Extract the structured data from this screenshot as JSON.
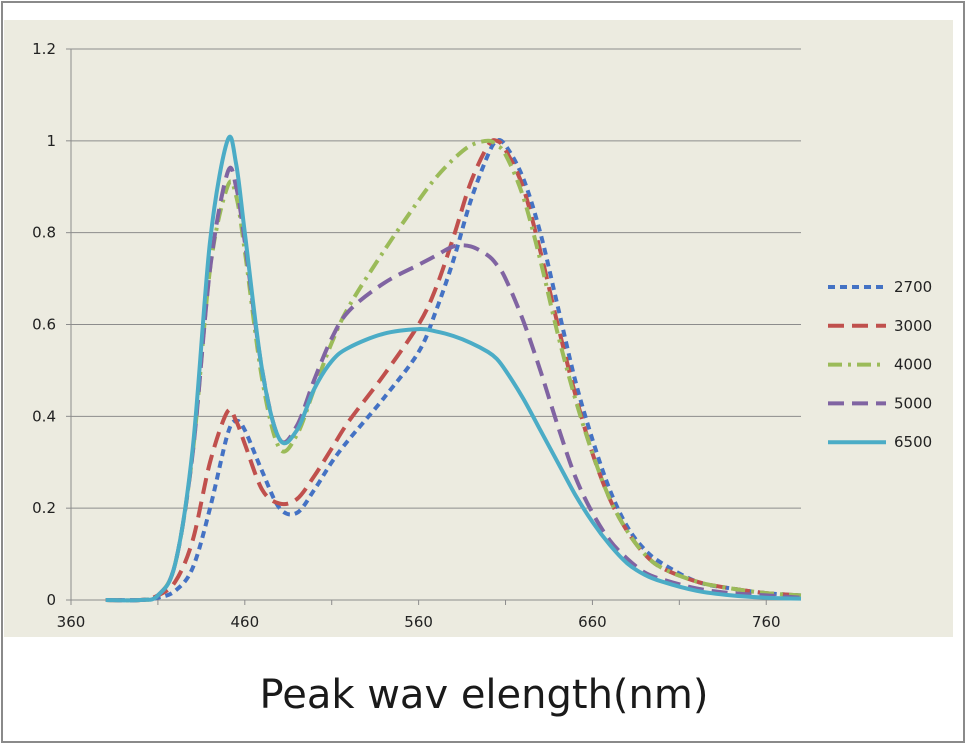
{
  "chart_data": {
    "type": "line",
    "title": "",
    "xlabel": "Peak wav elength(nm)",
    "ylabel": "",
    "xlim": [
      360,
      780
    ],
    "ylim": [
      0,
      1.2
    ],
    "x_ticks": [
      360,
      460,
      560,
      660,
      760
    ],
    "y_ticks": [
      0,
      0.2,
      0.4,
      0.6,
      0.8,
      1,
      1.2
    ],
    "y_tick_labels": [
      "0",
      "0.2",
      "0.4",
      "0.6",
      "0.8",
      "1",
      "1.2"
    ],
    "grid": "horizontal",
    "legend_position": "right",
    "series": [
      {
        "name": "2700",
        "color": "#4472c4",
        "dash": "short-dash",
        "x": [
          380,
          400,
          410,
          420,
          430,
          440,
          450,
          455,
          460,
          470,
          480,
          490,
          500,
          510,
          520,
          540,
          560,
          570,
          580,
          590,
          600,
          605,
          610,
          620,
          630,
          640,
          650,
          660,
          670,
          680,
          690,
          700,
          720,
          740,
          760,
          780
        ],
        "y": [
          0,
          0,
          0.005,
          0.02,
          0.07,
          0.2,
          0.36,
          0.39,
          0.37,
          0.28,
          0.2,
          0.19,
          0.24,
          0.3,
          0.35,
          0.44,
          0.54,
          0.63,
          0.74,
          0.87,
          0.97,
          1.0,
          0.99,
          0.92,
          0.8,
          0.64,
          0.48,
          0.35,
          0.24,
          0.16,
          0.11,
          0.08,
          0.04,
          0.025,
          0.015,
          0.01
        ]
      },
      {
        "name": "3000",
        "color": "#c0504d",
        "dash": "long-dash",
        "x": [
          380,
          400,
          410,
          420,
          430,
          440,
          450,
          455,
          460,
          470,
          480,
          490,
          500,
          510,
          520,
          540,
          560,
          570,
          580,
          590,
          600,
          605,
          610,
          620,
          630,
          640,
          650,
          660,
          670,
          680,
          690,
          700,
          720,
          740,
          760,
          780
        ],
        "y": [
          0,
          0,
          0.01,
          0.04,
          0.13,
          0.3,
          0.41,
          0.39,
          0.34,
          0.24,
          0.21,
          0.22,
          0.27,
          0.33,
          0.39,
          0.49,
          0.6,
          0.68,
          0.79,
          0.91,
          0.99,
          1.0,
          0.98,
          0.9,
          0.76,
          0.6,
          0.45,
          0.32,
          0.22,
          0.15,
          0.1,
          0.07,
          0.04,
          0.025,
          0.015,
          0.01
        ]
      },
      {
        "name": "4000",
        "color": "#9bbb59",
        "dash": "dash-dot",
        "x": [
          380,
          400,
          410,
          420,
          430,
          440,
          450,
          455,
          460,
          470,
          480,
          490,
          500,
          510,
          520,
          540,
          560,
          570,
          580,
          590,
          600,
          605,
          610,
          620,
          630,
          640,
          650,
          660,
          670,
          680,
          690,
          700,
          720,
          740,
          760,
          780
        ],
        "y": [
          0,
          0,
          0.01,
          0.08,
          0.32,
          0.72,
          0.9,
          0.88,
          0.76,
          0.48,
          0.33,
          0.36,
          0.46,
          0.56,
          0.64,
          0.76,
          0.87,
          0.92,
          0.96,
          0.99,
          1.0,
          0.99,
          0.97,
          0.88,
          0.74,
          0.58,
          0.44,
          0.32,
          0.22,
          0.15,
          0.1,
          0.07,
          0.04,
          0.025,
          0.015,
          0.01
        ]
      },
      {
        "name": "5000",
        "color": "#8064a2",
        "dash": "long-dash",
        "x": [
          380,
          400,
          410,
          420,
          430,
          440,
          450,
          455,
          460,
          470,
          480,
          490,
          500,
          510,
          520,
          540,
          560,
          570,
          580,
          590,
          600,
          605,
          610,
          620,
          630,
          640,
          650,
          660,
          670,
          680,
          690,
          700,
          720,
          740,
          760,
          780
        ],
        "y": [
          0,
          0,
          0.01,
          0.08,
          0.32,
          0.72,
          0.93,
          0.9,
          0.78,
          0.5,
          0.35,
          0.38,
          0.48,
          0.57,
          0.63,
          0.69,
          0.73,
          0.75,
          0.77,
          0.77,
          0.75,
          0.73,
          0.7,
          0.61,
          0.5,
          0.38,
          0.27,
          0.19,
          0.13,
          0.09,
          0.06,
          0.045,
          0.025,
          0.015,
          0.01,
          0.005
        ]
      },
      {
        "name": "6500",
        "color": "#4bacc6",
        "dash": "solid",
        "x": [
          380,
          400,
          410,
          420,
          430,
          440,
          450,
          455,
          460,
          470,
          480,
          490,
          500,
          510,
          520,
          540,
          560,
          570,
          580,
          590,
          600,
          605,
          610,
          620,
          630,
          640,
          650,
          660,
          670,
          680,
          690,
          700,
          720,
          740,
          760,
          780
        ],
        "y": [
          0,
          0,
          0.01,
          0.08,
          0.33,
          0.78,
          1.0,
          0.95,
          0.8,
          0.5,
          0.35,
          0.37,
          0.46,
          0.52,
          0.55,
          0.58,
          0.59,
          0.585,
          0.575,
          0.56,
          0.54,
          0.525,
          0.5,
          0.44,
          0.37,
          0.3,
          0.23,
          0.17,
          0.12,
          0.08,
          0.055,
          0.04,
          0.02,
          0.01,
          0.005,
          0.003
        ]
      }
    ]
  }
}
